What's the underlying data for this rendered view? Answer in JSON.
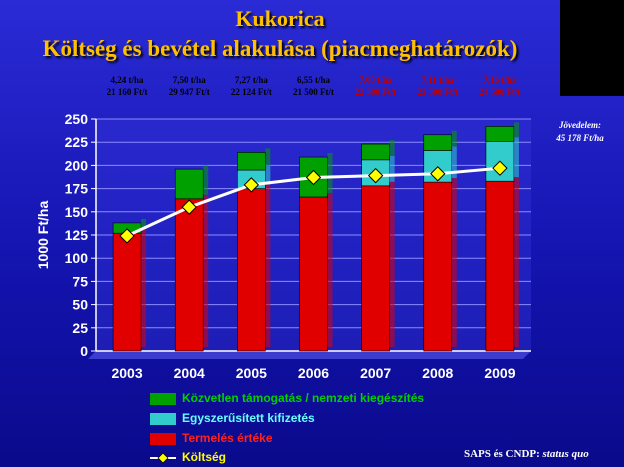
{
  "title_line1": "Kukorica",
  "title_line2": "Költség és bevétel alakulása (piacmeghatározók)",
  "yield_labels": [
    {
      "yield": "4,24 t/ha",
      "price": "21 160 Ft/t",
      "highlight": false
    },
    {
      "yield": "7,50 t/ha",
      "price": "29 947 Ft/t",
      "highlight": false
    },
    {
      "yield": "7,27 t/ha",
      "price": "22 124 Ft/t",
      "highlight": false
    },
    {
      "yield": "6,55 t/ha",
      "price": "21 500 Ft/t",
      "highlight": false
    },
    {
      "yield": "7,00 t/ha",
      "price": "22 500 Ft/t",
      "highlight": true
    },
    {
      "yield": "7,11 t/ha",
      "price": "23 500 Ft/t",
      "highlight": true
    },
    {
      "yield": "7,16 t/ha",
      "price": "24 500 Ft/t",
      "highlight": true
    }
  ],
  "income_note": {
    "line1": "Jövedelem:",
    "line2": "45 178 Ft/ha"
  },
  "note": {
    "prefix": "SAPS és CNDP:",
    "suffix": "status quo"
  },
  "chart_data": {
    "type": "bar",
    "stacked": true,
    "categories": [
      "2003",
      "2004",
      "2005",
      "2006",
      "2007",
      "2008",
      "2009"
    ],
    "ylabel": "1000 Ft/ha",
    "ylim": [
      0,
      250
    ],
    "yticks": [
      0,
      25,
      50,
      75,
      100,
      125,
      150,
      175,
      200,
      225,
      250
    ],
    "grid": true,
    "series": [
      {
        "name": "Termelés értéke",
        "kind": "bar",
        "color": "#e00000",
        "values": [
          127,
          164,
          175,
          166,
          178,
          182,
          183
        ]
      },
      {
        "name": "Egyszerűsített kifizetés",
        "kind": "bar",
        "color": "#33cccc",
        "values": [
          0,
          0,
          20,
          0,
          28,
          34,
          43
        ]
      },
      {
        "name": "Közvetlen támogatás / nemzeti kiegészítés",
        "kind": "bar",
        "color": "#00a000",
        "values": [
          11,
          32,
          19,
          43,
          17,
          17,
          16
        ]
      },
      {
        "name": "Költség",
        "kind": "line",
        "color": "#ffffff",
        "marker_color": "#ffff00",
        "values": [
          124,
          155,
          179,
          187,
          189,
          191,
          197
        ]
      }
    ]
  }
}
